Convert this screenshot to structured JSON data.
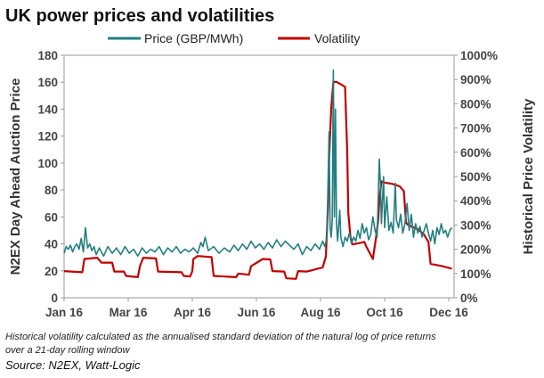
{
  "chart_data": {
    "type": "line",
    "title": "UK power prices and volatilities",
    "legend": {
      "placement": "top",
      "entries": [
        "Price (GBP/MWh)",
        "Volatility"
      ]
    },
    "colors": {
      "price": "#227f82",
      "volatility": "#c00000"
    },
    "x_tick_labels": [
      "Jan 16",
      "Mar 16",
      "Apr 16",
      "Jun 16",
      "Aug 16",
      "Oct 16",
      "Dec 16"
    ],
    "x_tick_dates": [
      "2016-01-01",
      "2016-03-01",
      "2016-04-30",
      "2016-06-29",
      "2016-08-28",
      "2016-10-27",
      "2016-12-26"
    ],
    "xlim": [
      "2016-01-01",
      "2016-12-31"
    ],
    "ylabel": "N2EX  Day Ahead Auction Price",
    "ylim": [
      0,
      180
    ],
    "y_ticks": [
      0,
      20,
      40,
      60,
      80,
      100,
      120,
      140,
      160,
      180
    ],
    "y2label": "Historical Price Volatility",
    "y2lim": [
      0,
      1000
    ],
    "y2_ticks": [
      "0%",
      "100%",
      "200%",
      "300%",
      "400%",
      "500%",
      "600%",
      "700%",
      "800%",
      "900%",
      "1000%"
    ],
    "grid": false,
    "annotations": [
      "Historical volatility calculated as the annualised standard deviation of the natural log of price returns",
      "over a 21-day rolling window"
    ],
    "source": "Source: N2EX, Watt-Logic",
    "series": [
      {
        "name": "Price (GBP/MWh)",
        "axis": "left",
        "points": [
          [
            "2016-01-01",
            33
          ],
          [
            "2016-01-03",
            38
          ],
          [
            "2016-01-05",
            36
          ],
          [
            "2016-01-07",
            39
          ],
          [
            "2016-01-09",
            34
          ],
          [
            "2016-01-11",
            38
          ],
          [
            "2016-01-13",
            40
          ],
          [
            "2016-01-15",
            36
          ],
          [
            "2016-01-17",
            44
          ],
          [
            "2016-01-19",
            34
          ],
          [
            "2016-01-21",
            52
          ],
          [
            "2016-01-23",
            37
          ],
          [
            "2016-01-25",
            40
          ],
          [
            "2016-01-27",
            35
          ],
          [
            "2016-01-29",
            38
          ],
          [
            "2016-01-31",
            32
          ],
          [
            "2016-02-03",
            37
          ],
          [
            "2016-02-07",
            31
          ],
          [
            "2016-02-11",
            38
          ],
          [
            "2016-02-15",
            33
          ],
          [
            "2016-02-19",
            37
          ],
          [
            "2016-02-23",
            32
          ],
          [
            "2016-02-27",
            38
          ],
          [
            "2016-03-02",
            33
          ],
          [
            "2016-03-06",
            36
          ],
          [
            "2016-03-10",
            31
          ],
          [
            "2016-03-14",
            37
          ],
          [
            "2016-03-18",
            33
          ],
          [
            "2016-03-22",
            36
          ],
          [
            "2016-03-26",
            34
          ],
          [
            "2016-03-30",
            38
          ],
          [
            "2016-04-03",
            32
          ],
          [
            "2016-04-07",
            37
          ],
          [
            "2016-04-11",
            34
          ],
          [
            "2016-04-15",
            38
          ],
          [
            "2016-04-19",
            33
          ],
          [
            "2016-04-23",
            36
          ],
          [
            "2016-04-27",
            34
          ],
          [
            "2016-05-01",
            37
          ],
          [
            "2016-05-05",
            33
          ],
          [
            "2016-05-08",
            41
          ],
          [
            "2016-05-10",
            38
          ],
          [
            "2016-05-12",
            45
          ],
          [
            "2016-05-15",
            35
          ],
          [
            "2016-05-20",
            38
          ],
          [
            "2016-05-25",
            33
          ],
          [
            "2016-05-30",
            37
          ],
          [
            "2016-06-04",
            34
          ],
          [
            "2016-06-08",
            39
          ],
          [
            "2016-06-12",
            35
          ],
          [
            "2016-06-16",
            40
          ],
          [
            "2016-06-20",
            36
          ],
          [
            "2016-06-24",
            42
          ],
          [
            "2016-06-28",
            37
          ],
          [
            "2016-07-02",
            40
          ],
          [
            "2016-07-06",
            36
          ],
          [
            "2016-07-10",
            41
          ],
          [
            "2016-07-14",
            37
          ],
          [
            "2016-07-18",
            43
          ],
          [
            "2016-07-22",
            38
          ],
          [
            "2016-07-26",
            42
          ],
          [
            "2016-07-30",
            39
          ],
          [
            "2016-08-03",
            36
          ],
          [
            "2016-08-07",
            40
          ],
          [
            "2016-08-11",
            32
          ],
          [
            "2016-08-15",
            38
          ],
          [
            "2016-08-19",
            35
          ],
          [
            "2016-08-23",
            40
          ],
          [
            "2016-08-27",
            36
          ],
          [
            "2016-08-30",
            42
          ],
          [
            "2016-09-01",
            38
          ],
          [
            "2016-09-03",
            45
          ],
          [
            "2016-09-05",
            123
          ],
          [
            "2016-09-06",
            52
          ],
          [
            "2016-09-07",
            45
          ],
          [
            "2016-09-08",
            58
          ],
          [
            "2016-09-09",
            169
          ],
          [
            "2016-09-10",
            60
          ],
          [
            "2016-09-11",
            140
          ],
          [
            "2016-09-12",
            55
          ],
          [
            "2016-09-13",
            42
          ],
          [
            "2016-09-15",
            65
          ],
          [
            "2016-09-16",
            45
          ],
          [
            "2016-09-18",
            38
          ],
          [
            "2016-09-20",
            45
          ],
          [
            "2016-09-22",
            42
          ],
          [
            "2016-09-24",
            48
          ],
          [
            "2016-09-26",
            40
          ],
          [
            "2016-09-28",
            45
          ],
          [
            "2016-09-30",
            42
          ],
          [
            "2016-10-02",
            50
          ],
          [
            "2016-10-04",
            44
          ],
          [
            "2016-10-06",
            55
          ],
          [
            "2016-10-08",
            48
          ],
          [
            "2016-10-10",
            52
          ],
          [
            "2016-10-12",
            43
          ],
          [
            "2016-10-14",
            47
          ],
          [
            "2016-10-16",
            60
          ],
          [
            "2016-10-18",
            50
          ],
          [
            "2016-10-20",
            45
          ],
          [
            "2016-10-22",
            103
          ],
          [
            "2016-10-23",
            85
          ],
          [
            "2016-10-24",
            55
          ],
          [
            "2016-10-26",
            90
          ],
          [
            "2016-10-27",
            52
          ],
          [
            "2016-10-29",
            75
          ],
          [
            "2016-10-31",
            50
          ],
          [
            "2016-11-02",
            56
          ],
          [
            "2016-11-04",
            48
          ],
          [
            "2016-11-06",
            85
          ],
          [
            "2016-11-07",
            58
          ],
          [
            "2016-11-09",
            52
          ],
          [
            "2016-11-11",
            62
          ],
          [
            "2016-11-13",
            48
          ],
          [
            "2016-11-15",
            55
          ],
          [
            "2016-11-17",
            70
          ],
          [
            "2016-11-19",
            50
          ],
          [
            "2016-11-21",
            62
          ],
          [
            "2016-11-23",
            45
          ],
          [
            "2016-11-25",
            55
          ],
          [
            "2016-11-27",
            48
          ],
          [
            "2016-11-29",
            53
          ],
          [
            "2016-12-01",
            45
          ],
          [
            "2016-12-03",
            50
          ],
          [
            "2016-12-05",
            55
          ],
          [
            "2016-12-07",
            48
          ],
          [
            "2016-12-09",
            42
          ],
          [
            "2016-12-11",
            50
          ],
          [
            "2016-12-13",
            40
          ],
          [
            "2016-12-15",
            52
          ],
          [
            "2016-12-17",
            47
          ],
          [
            "2016-12-19",
            55
          ],
          [
            "2016-12-21",
            48
          ],
          [
            "2016-12-23",
            50
          ],
          [
            "2016-12-25",
            45
          ],
          [
            "2016-12-27",
            50
          ],
          [
            "2016-12-29",
            52
          ]
        ]
      },
      {
        "name": "Volatility",
        "axis": "right",
        "points": [
          [
            "2016-01-01",
            110
          ],
          [
            "2016-01-18",
            105
          ],
          [
            "2016-01-20",
            160
          ],
          [
            "2016-02-01",
            165
          ],
          [
            "2016-02-05",
            145
          ],
          [
            "2016-02-15",
            145
          ],
          [
            "2016-02-17",
            108
          ],
          [
            "2016-02-26",
            108
          ],
          [
            "2016-02-28",
            90
          ],
          [
            "2016-03-10",
            85
          ],
          [
            "2016-03-12",
            130
          ],
          [
            "2016-03-15",
            165
          ],
          [
            "2016-03-27",
            162
          ],
          [
            "2016-03-29",
            108
          ],
          [
            "2016-04-20",
            105
          ],
          [
            "2016-04-22",
            90
          ],
          [
            "2016-04-28",
            88
          ],
          [
            "2016-04-30",
            110
          ],
          [
            "2016-05-01",
            160
          ],
          [
            "2016-05-05",
            172
          ],
          [
            "2016-05-12",
            170
          ],
          [
            "2016-05-18",
            168
          ],
          [
            "2016-05-20",
            90
          ],
          [
            "2016-06-10",
            85
          ],
          [
            "2016-06-12",
            100
          ],
          [
            "2016-06-22",
            95
          ],
          [
            "2016-06-24",
            130
          ],
          [
            "2016-07-05",
            160
          ],
          [
            "2016-07-12",
            158
          ],
          [
            "2016-07-14",
            110
          ],
          [
            "2016-07-25",
            108
          ],
          [
            "2016-07-27",
            80
          ],
          [
            "2016-08-05",
            78
          ],
          [
            "2016-08-07",
            110
          ],
          [
            "2016-08-15",
            108
          ],
          [
            "2016-08-19",
            112
          ],
          [
            "2016-08-25",
            120
          ],
          [
            "2016-08-30",
            125
          ],
          [
            "2016-09-02",
            170
          ],
          [
            "2016-09-04",
            380
          ],
          [
            "2016-09-05",
            570
          ],
          [
            "2016-09-07",
            780
          ],
          [
            "2016-09-09",
            890
          ],
          [
            "2016-09-12",
            890
          ],
          [
            "2016-09-16",
            880
          ],
          [
            "2016-09-20",
            870
          ],
          [
            "2016-09-22",
            600
          ],
          [
            "2016-09-23",
            350
          ],
          [
            "2016-09-25",
            250
          ],
          [
            "2016-09-27",
            220
          ],
          [
            "2016-10-08",
            230
          ],
          [
            "2016-10-10",
            210
          ],
          [
            "2016-10-16",
            160
          ],
          [
            "2016-10-19",
            250
          ],
          [
            "2016-10-21",
            320
          ],
          [
            "2016-10-22",
            400
          ],
          [
            "2016-10-24",
            480
          ],
          [
            "2016-10-27",
            475
          ],
          [
            "2016-11-03",
            470
          ],
          [
            "2016-11-10",
            460
          ],
          [
            "2016-11-14",
            440
          ],
          [
            "2016-11-16",
            310
          ],
          [
            "2016-11-18",
            300
          ],
          [
            "2016-11-28",
            280
          ],
          [
            "2016-12-03",
            260
          ],
          [
            "2016-12-07",
            230
          ],
          [
            "2016-12-09",
            140
          ],
          [
            "2016-12-20",
            130
          ],
          [
            "2016-12-29",
            120
          ]
        ]
      }
    ]
  }
}
